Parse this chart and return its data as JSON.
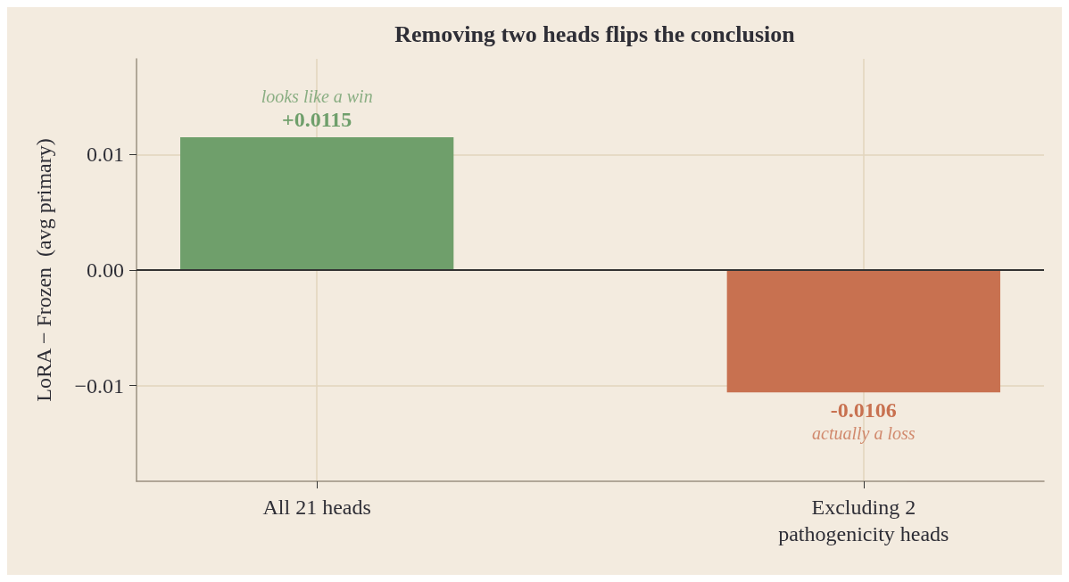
{
  "chart_data": {
    "type": "bar",
    "title": "Removing two heads flips the conclusion",
    "ylabel": "LoRA − Frozen  (avg primary)",
    "categories": [
      "All 21 heads",
      "Excluding 2\npathogenicity heads"
    ],
    "values": [
      0.0115,
      -0.0106
    ],
    "colors": [
      "#6f9f6b",
      "#c87150"
    ],
    "value_labels": [
      "+0.0115",
      "-0.0106"
    ],
    "annotations": [
      {
        "text": "looks like a win",
        "x": "All 21 heads",
        "y": 0.0115
      },
      {
        "text": "actually a loss",
        "x": "Excluding 2\npathogenicity heads",
        "y": -0.0106
      }
    ],
    "ylim": [
      -0.0183,
      0.0183
    ],
    "yticks": [
      {
        "value": -0.01,
        "label": "−0.01"
      },
      {
        "value": 0,
        "label": "0.00"
      },
      {
        "value": 0.01,
        "label": "0.01"
      }
    ],
    "ref_lines": [
      {
        "axis": "y",
        "value": 0,
        "color": "#333333"
      }
    ],
    "grid": true
  }
}
